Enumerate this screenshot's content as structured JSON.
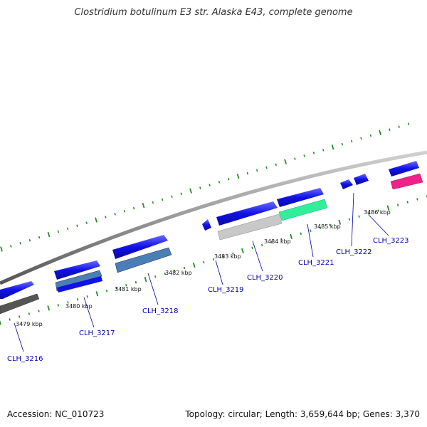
{
  "title": "Clostridium botulinum E3 str. Alaska E43, complete genome",
  "footer": {
    "accession": "Accession: NC_010723",
    "topology": "Topology: circular; Length: 3,659,644 bp; Genes: 3,370"
  },
  "kbp_labels": [
    "3479 kbp",
    "3480 kbp",
    "3481 kbp",
    "3482 kbp",
    "3483 kbp",
    "3484 kbp",
    "3485 kbp",
    "3486 kbp"
  ],
  "gene_labels": [
    "CLH_3216",
    "CLH_3217",
    "CLH_3218",
    "CLH_3219",
    "CLH_3220",
    "CLH_3221",
    "CLH_3222",
    "CLH_3223"
  ],
  "colors": {
    "forward_gene": "#1010e8",
    "backbone": "#888888",
    "tick": "#2a8a2a",
    "label": "#0000aa",
    "steelblue_feature": "#4a7fb5",
    "grey_feature": "#c8c8c8",
    "darkgrey_feature": "#555555",
    "green_feature": "#33ee99",
    "pink_feature": "#ee2288"
  }
}
